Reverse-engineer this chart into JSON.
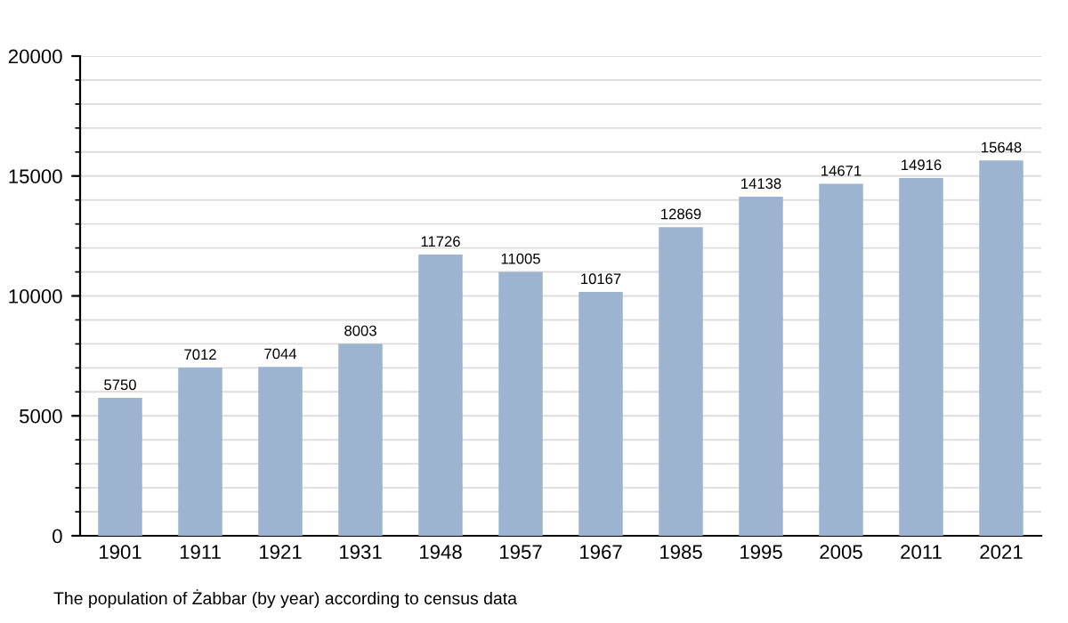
{
  "chart_data": {
    "type": "bar",
    "categories": [
      "1901",
      "1911",
      "1921",
      "1931",
      "1948",
      "1957",
      "1967",
      "1985",
      "1995",
      "2005",
      "2011",
      "2021"
    ],
    "values": [
      5750,
      7012,
      7044,
      8003,
      11726,
      11005,
      10167,
      12869,
      14138,
      14671,
      14916,
      15648
    ],
    "color": "#9cb4cf",
    "ylim": [
      0,
      20000
    ],
    "yticks": [
      0,
      5000,
      10000,
      15000,
      20000
    ],
    "grid": "y",
    "data_labels": true,
    "annotations": [
      "The population of Żabbar (by year) according to census data"
    ]
  }
}
